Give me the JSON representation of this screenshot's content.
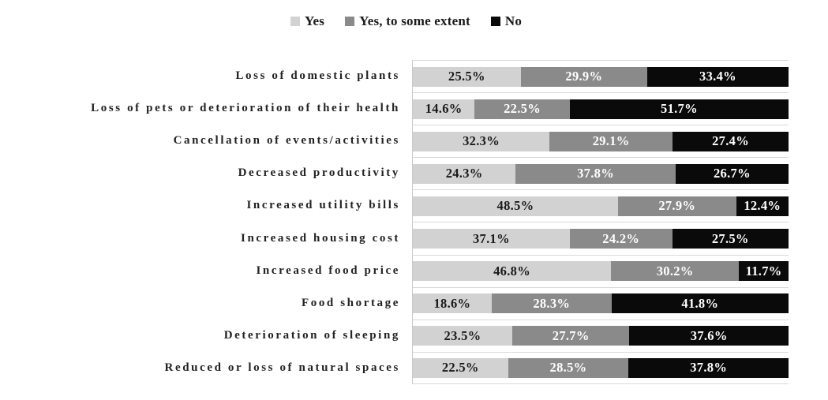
{
  "chart_data": {
    "type": "bar",
    "orientation": "horizontal",
    "stacked": true,
    "normalized_rows": true,
    "legend_position": "top",
    "grid": true,
    "gridline_color": "#d9d9d9",
    "axis_line_color": "#c9c9c9",
    "value_suffix": "%",
    "categories": [
      "Loss of domestic plants",
      "Loss of pets or deterioration of their health",
      "Cancellation of events/activities",
      "Decreased productivity",
      "Increased utility bills",
      "Increased housing cost",
      "Increased food price",
      "Food shortage",
      "Deterioration of sleeping",
      "Reduced or loss of natural spaces"
    ],
    "series": [
      {
        "name": "Yes",
        "color": "#d2d2d2",
        "label_color": "#1a1a1a",
        "values": [
          25.5,
          14.6,
          32.3,
          24.3,
          48.5,
          37.1,
          46.8,
          18.6,
          23.5,
          22.5
        ]
      },
      {
        "name": "Yes, to some extent",
        "color": "#8a8a8a",
        "label_color": "#ffffff",
        "values": [
          29.9,
          22.5,
          29.1,
          37.8,
          27.9,
          24.2,
          30.2,
          28.3,
          27.7,
          28.5
        ]
      },
      {
        "name": "No",
        "color": "#0a0a0a",
        "label_color": "#ffffff",
        "values": [
          33.4,
          51.7,
          27.4,
          26.7,
          12.4,
          27.5,
          11.7,
          41.8,
          37.6,
          37.8
        ]
      }
    ]
  }
}
